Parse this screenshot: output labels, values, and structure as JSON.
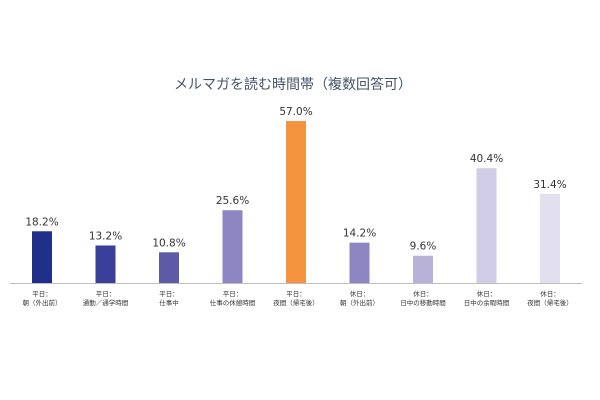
{
  "chart_data": {
    "type": "bar",
    "title": "メルマガを読む時間帯（複数回答可）",
    "xlabel": "",
    "ylabel": "",
    "ylim": [
      0,
      57
    ],
    "grid": false,
    "legend": "none",
    "value_suffix": "%",
    "categories": [
      [
        "平日：",
        "朝（外出前）"
      ],
      [
        "平日：",
        "通勤／通学時間"
      ],
      [
        "平日：",
        "仕事中"
      ],
      [
        "平日：",
        "仕事の休憩時間"
      ],
      [
        "平日：",
        "夜間（帰宅後）"
      ],
      [
        "休日：",
        "朝（外出前）"
      ],
      [
        "休日：",
        "日中の移動時間"
      ],
      [
        "休日：",
        "日中の余暇時間"
      ],
      [
        "休日：",
        "夜間（帰宅後）"
      ]
    ],
    "values": [
      18.2,
      13.2,
      10.8,
      25.6,
      57.0,
      14.2,
      9.6,
      40.4,
      31.4
    ],
    "value_labels": [
      "18.2%",
      "13.2%",
      "10.8%",
      "25.6%",
      "57.0%",
      "14.2%",
      "9.6%",
      "40.4%",
      "31.4%"
    ],
    "colors": [
      "#1f2f8a",
      "#3a3f99",
      "#5e5aa8",
      "#8e86c2",
      "#f4943e",
      "#8e86c2",
      "#b8b2d8",
      "#d2cde6",
      "#e2dfee"
    ],
    "axis_color": "#bfbfbf"
  }
}
